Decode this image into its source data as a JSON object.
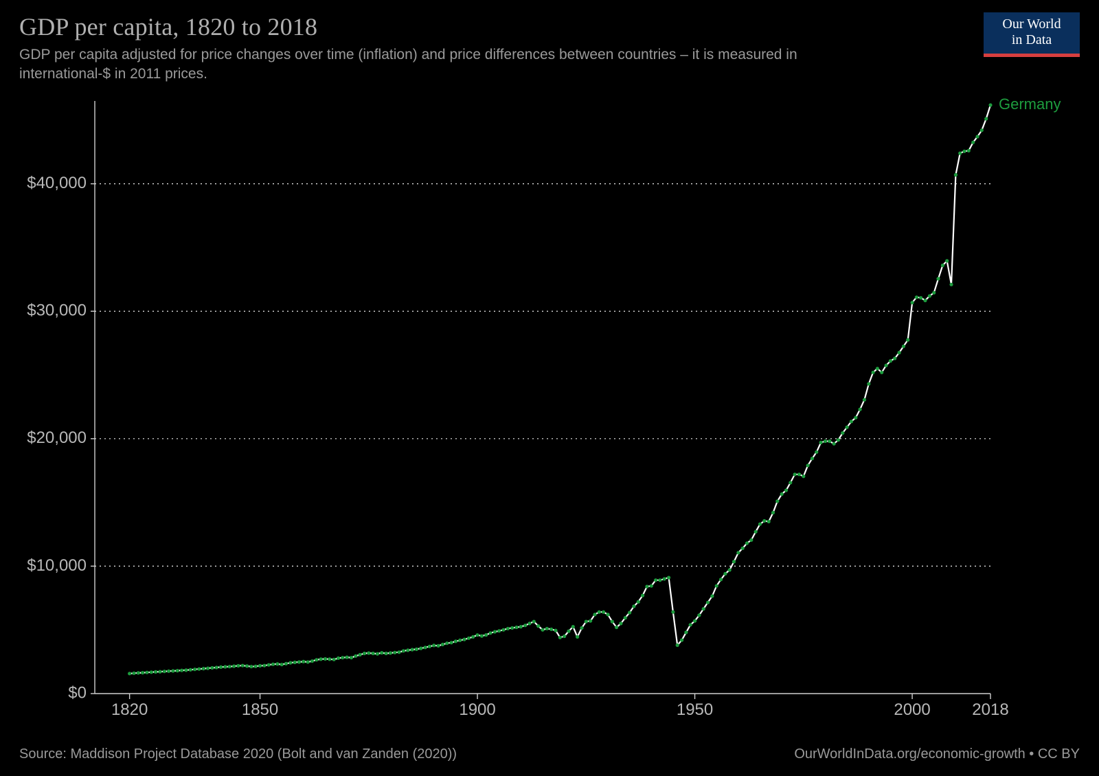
{
  "header": {
    "title": "GDP per capita, 1820 to 2018",
    "subtitle": "GDP per capita adjusted for price changes over time (inflation) and price differences between countries – it is measured in international-$ in 2011 prices."
  },
  "logo": {
    "line1": "Our World",
    "line2": "in Data",
    "bg_color": "#0a2f5c",
    "bar_color": "#d63f3f",
    "text_color": "#ffffff"
  },
  "footer": {
    "source": "Source: Maddison Project Database 2020 (Bolt and van Zanden (2020))",
    "attribution": "OurWorldInData.org/economic-growth • CC BY"
  },
  "chart": {
    "type": "line",
    "background_color": "#000000",
    "grid_color": "#f0f0f0",
    "grid_dash": "2,5",
    "axis_color": "#d0d0d0",
    "tick_color": "#b8b8b8",
    "tick_fontsize": 24,
    "xlim": [
      1812,
      2018
    ],
    "ylim": [
      0,
      46500
    ],
    "y_ticks": [
      {
        "v": 0,
        "label": "$0"
      },
      {
        "v": 10000,
        "label": "$10,000"
      },
      {
        "v": 20000,
        "label": "$20,000"
      },
      {
        "v": 30000,
        "label": "$30,000"
      },
      {
        "v": 40000,
        "label": "$40,000"
      }
    ],
    "x_ticks": [
      {
        "v": 1820,
        "label": "1820"
      },
      {
        "v": 1850,
        "label": "1850"
      },
      {
        "v": 1900,
        "label": "1900"
      },
      {
        "v": 1950,
        "label": "1950"
      },
      {
        "v": 2000,
        "label": "2000"
      },
      {
        "v": 2018,
        "label": "2018"
      }
    ],
    "series": [
      {
        "name": "Germany",
        "label": "Germany",
        "line_color": "#ffffff",
        "marker_color": "#1d9c3e",
        "label_color": "#1d9c3e",
        "line_width": 2.2,
        "marker_radius": 2.6,
        "data": [
          [
            1820,
            1572
          ],
          [
            1821,
            1600
          ],
          [
            1822,
            1620
          ],
          [
            1823,
            1640
          ],
          [
            1824,
            1660
          ],
          [
            1825,
            1680
          ],
          [
            1826,
            1700
          ],
          [
            1827,
            1720
          ],
          [
            1828,
            1740
          ],
          [
            1829,
            1760
          ],
          [
            1830,
            1780
          ],
          [
            1831,
            1800
          ],
          [
            1832,
            1820
          ],
          [
            1833,
            1840
          ],
          [
            1834,
            1870
          ],
          [
            1835,
            1900
          ],
          [
            1836,
            1930
          ],
          [
            1837,
            1960
          ],
          [
            1838,
            1990
          ],
          [
            1839,
            2020
          ],
          [
            1840,
            2050
          ],
          [
            1841,
            2080
          ],
          [
            1842,
            2100
          ],
          [
            1843,
            2120
          ],
          [
            1844,
            2150
          ],
          [
            1845,
            2180
          ],
          [
            1846,
            2200
          ],
          [
            1847,
            2160
          ],
          [
            1848,
            2120
          ],
          [
            1849,
            2140
          ],
          [
            1850,
            2181
          ],
          [
            1851,
            2200
          ],
          [
            1852,
            2250
          ],
          [
            1853,
            2300
          ],
          [
            1854,
            2320
          ],
          [
            1855,
            2280
          ],
          [
            1856,
            2350
          ],
          [
            1857,
            2420
          ],
          [
            1858,
            2450
          ],
          [
            1859,
            2480
          ],
          [
            1860,
            2509
          ],
          [
            1861,
            2480
          ],
          [
            1862,
            2550
          ],
          [
            1863,
            2650
          ],
          [
            1864,
            2700
          ],
          [
            1865,
            2720
          ],
          [
            1866,
            2700
          ],
          [
            1867,
            2680
          ],
          [
            1868,
            2780
          ],
          [
            1869,
            2820
          ],
          [
            1870,
            2849
          ],
          [
            1871,
            2820
          ],
          [
            1872,
            2950
          ],
          [
            1873,
            3050
          ],
          [
            1874,
            3150
          ],
          [
            1875,
            3180
          ],
          [
            1876,
            3150
          ],
          [
            1877,
            3120
          ],
          [
            1878,
            3200
          ],
          [
            1879,
            3150
          ],
          [
            1880,
            3184
          ],
          [
            1881,
            3220
          ],
          [
            1882,
            3250
          ],
          [
            1883,
            3350
          ],
          [
            1884,
            3400
          ],
          [
            1885,
            3450
          ],
          [
            1886,
            3480
          ],
          [
            1887,
            3550
          ],
          [
            1888,
            3620
          ],
          [
            1889,
            3700
          ],
          [
            1890,
            3776
          ],
          [
            1891,
            3750
          ],
          [
            1892,
            3850
          ],
          [
            1893,
            3950
          ],
          [
            1894,
            4000
          ],
          [
            1895,
            4100
          ],
          [
            1896,
            4180
          ],
          [
            1897,
            4250
          ],
          [
            1898,
            4350
          ],
          [
            1899,
            4450
          ],
          [
            1900,
            4596
          ],
          [
            1901,
            4520
          ],
          [
            1902,
            4600
          ],
          [
            1903,
            4750
          ],
          [
            1904,
            4850
          ],
          [
            1905,
            4920
          ],
          [
            1906,
            5000
          ],
          [
            1907,
            5100
          ],
          [
            1908,
            5150
          ],
          [
            1909,
            5200
          ],
          [
            1910,
            5250
          ],
          [
            1911,
            5350
          ],
          [
            1912,
            5500
          ],
          [
            1913,
            5650
          ],
          [
            1914,
            5300
          ],
          [
            1915,
            5000
          ],
          [
            1916,
            5100
          ],
          [
            1917,
            5050
          ],
          [
            1918,
            4950
          ],
          [
            1919,
            4400
          ],
          [
            1920,
            4500
          ],
          [
            1921,
            4900
          ],
          [
            1922,
            5250
          ],
          [
            1923,
            4450
          ],
          [
            1924,
            5150
          ],
          [
            1925,
            5650
          ],
          [
            1926,
            5700
          ],
          [
            1927,
            6200
          ],
          [
            1928,
            6400
          ],
          [
            1929,
            6400
          ],
          [
            1930,
            6200
          ],
          [
            1931,
            5650
          ],
          [
            1932,
            5200
          ],
          [
            1933,
            5500
          ],
          [
            1934,
            5950
          ],
          [
            1935,
            6350
          ],
          [
            1936,
            6850
          ],
          [
            1937,
            7200
          ],
          [
            1938,
            7700
          ],
          [
            1939,
            8400
          ],
          [
            1940,
            8450
          ],
          [
            1941,
            8900
          ],
          [
            1942,
            8900
          ],
          [
            1943,
            9000
          ],
          [
            1944,
            9100
          ],
          [
            1945,
            6400
          ],
          [
            1946,
            3800
          ],
          [
            1947,
            4200
          ],
          [
            1948,
            4800
          ],
          [
            1949,
            5400
          ],
          [
            1950,
            5700
          ],
          [
            1951,
            6150
          ],
          [
            1952,
            6650
          ],
          [
            1953,
            7150
          ],
          [
            1954,
            7650
          ],
          [
            1955,
            8450
          ],
          [
            1956,
            8950
          ],
          [
            1957,
            9400
          ],
          [
            1958,
            9700
          ],
          [
            1959,
            10350
          ],
          [
            1960,
            11056
          ],
          [
            1961,
            11400
          ],
          [
            1962,
            11800
          ],
          [
            1963,
            12050
          ],
          [
            1964,
            12700
          ],
          [
            1965,
            13300
          ],
          [
            1966,
            13550
          ],
          [
            1967,
            13500
          ],
          [
            1968,
            14200
          ],
          [
            1969,
            15100
          ],
          [
            1970,
            15650
          ],
          [
            1971,
            15950
          ],
          [
            1972,
            16550
          ],
          [
            1973,
            17200
          ],
          [
            1974,
            17200
          ],
          [
            1975,
            17050
          ],
          [
            1976,
            17900
          ],
          [
            1977,
            18450
          ],
          [
            1978,
            18950
          ],
          [
            1979,
            19700
          ],
          [
            1980,
            19800
          ],
          [
            1981,
            19800
          ],
          [
            1982,
            19600
          ],
          [
            1983,
            19900
          ],
          [
            1984,
            20450
          ],
          [
            1985,
            20900
          ],
          [
            1986,
            21350
          ],
          [
            1987,
            21650
          ],
          [
            1988,
            22300
          ],
          [
            1989,
            23050
          ],
          [
            1990,
            24303
          ],
          [
            1991,
            25200
          ],
          [
            1992,
            25500
          ],
          [
            1993,
            25200
          ],
          [
            1994,
            25750
          ],
          [
            1995,
            26100
          ],
          [
            1996,
            26300
          ],
          [
            1997,
            26750
          ],
          [
            1998,
            27250
          ],
          [
            1999,
            27750
          ],
          [
            2000,
            30678
          ],
          [
            2001,
            31100
          ],
          [
            2002,
            31050
          ],
          [
            2003,
            30850
          ],
          [
            2004,
            31200
          ],
          [
            2005,
            31450
          ],
          [
            2006,
            32550
          ],
          [
            2007,
            33600
          ],
          [
            2008,
            33950
          ],
          [
            2009,
            32100
          ],
          [
            2010,
            40703
          ],
          [
            2011,
            42400
          ],
          [
            2012,
            42550
          ],
          [
            2013,
            42600
          ],
          [
            2014,
            43250
          ],
          [
            2015,
            43700
          ],
          [
            2016,
            44200
          ],
          [
            2017,
            45100
          ],
          [
            2018,
            46178
          ]
        ]
      }
    ]
  }
}
